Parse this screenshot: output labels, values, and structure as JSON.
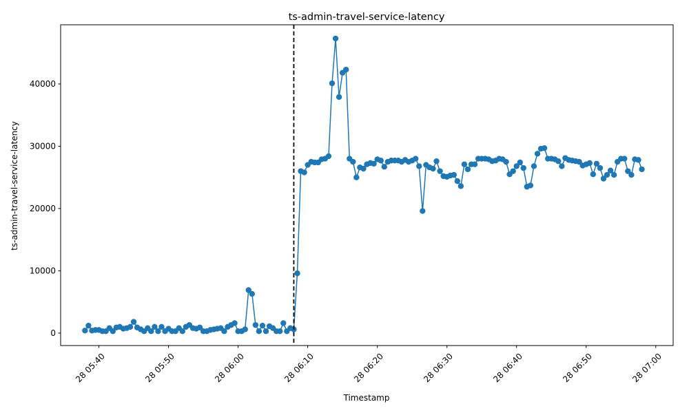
{
  "chart_data": {
    "type": "line",
    "title": "ts-admin-travel-service-latency",
    "xlabel": "Timestamp",
    "ylabel": "ts-admin-travel-service-latency",
    "ylim": [
      -2000,
      49500
    ],
    "xlim": [
      "2024-05-28 05:34:30",
      "2024-05-28 07:02:30"
    ],
    "yticks": [
      0,
      10000,
      20000,
      30000,
      40000
    ],
    "xticks": [
      {
        "t": "2024-05-28 05:40",
        "label": "28 05:40"
      },
      {
        "t": "2024-05-28 05:50",
        "label": "28 05:50"
      },
      {
        "t": "2024-05-28 06:00",
        "label": "28 06:00"
      },
      {
        "t": "2024-05-28 06:10",
        "label": "28 06:10"
      },
      {
        "t": "2024-05-28 06:20",
        "label": "28 06:20"
      },
      {
        "t": "2024-05-28 06:30",
        "label": "28 06:30"
      },
      {
        "t": "2024-05-28 06:40",
        "label": "28 06:40"
      },
      {
        "t": "2024-05-28 06:50",
        "label": "28 06:50"
      },
      {
        "t": "2024-05-28 07:00",
        "label": "28 07:00"
      }
    ],
    "grid": false,
    "line_color": "#1f77b4",
    "marker": "circle",
    "vline": {
      "t": "2024-05-28 06:08",
      "style": "dashed",
      "color": "#000000"
    },
    "start_time": "2024-05-28 05:38",
    "interval_seconds": 30,
    "series": [
      {
        "values": [
          400,
          1200,
          400,
          500,
          500,
          300,
          300,
          800,
          300,
          900,
          1000,
          700,
          800,
          1000,
          1800,
          900,
          600,
          300,
          800,
          300,
          1000,
          300,
          1000,
          300,
          700,
          300,
          300,
          800,
          300,
          1000,
          1300,
          800,
          700,
          900,
          300,
          300,
          500,
          600,
          700,
          800,
          300,
          1000,
          1300,
          1600,
          300,
          300,
          600,
          6900,
          6300,
          1300,
          300,
          1200,
          300,
          1100,
          800,
          300,
          300,
          1600,
          300,
          800,
          600,
          9600,
          26000,
          25800,
          27000,
          27500,
          27400,
          27400,
          27900,
          28000,
          28400,
          40100,
          47300,
          37900,
          41800,
          42300,
          28000,
          27500,
          25000,
          26600,
          26400,
          27100,
          27300,
          27200,
          27900,
          27700,
          26700,
          27500,
          27700,
          27700,
          27700,
          27500,
          27800,
          27500,
          27700,
          28000,
          26800,
          19600,
          27000,
          26600,
          26400,
          27600,
          26000,
          25200,
          25100,
          25300,
          25400,
          24400,
          23600,
          27100,
          26300,
          27100,
          27100,
          28000,
          28000,
          28000,
          27900,
          27600,
          27700,
          28000,
          27900,
          27500,
          25500,
          26000,
          26800,
          27400,
          26500,
          23500,
          23700,
          26800,
          28800,
          29600,
          29700,
          28000,
          28000,
          27900,
          27600,
          26800,
          28100,
          27800,
          27700,
          27600,
          27500,
          26900,
          27100,
          27300,
          25500,
          27200,
          26500,
          24800,
          25400,
          26100,
          25400,
          27500,
          28000,
          28000,
          26000,
          25400,
          27900,
          27800,
          26300
        ]
      }
    ]
  }
}
